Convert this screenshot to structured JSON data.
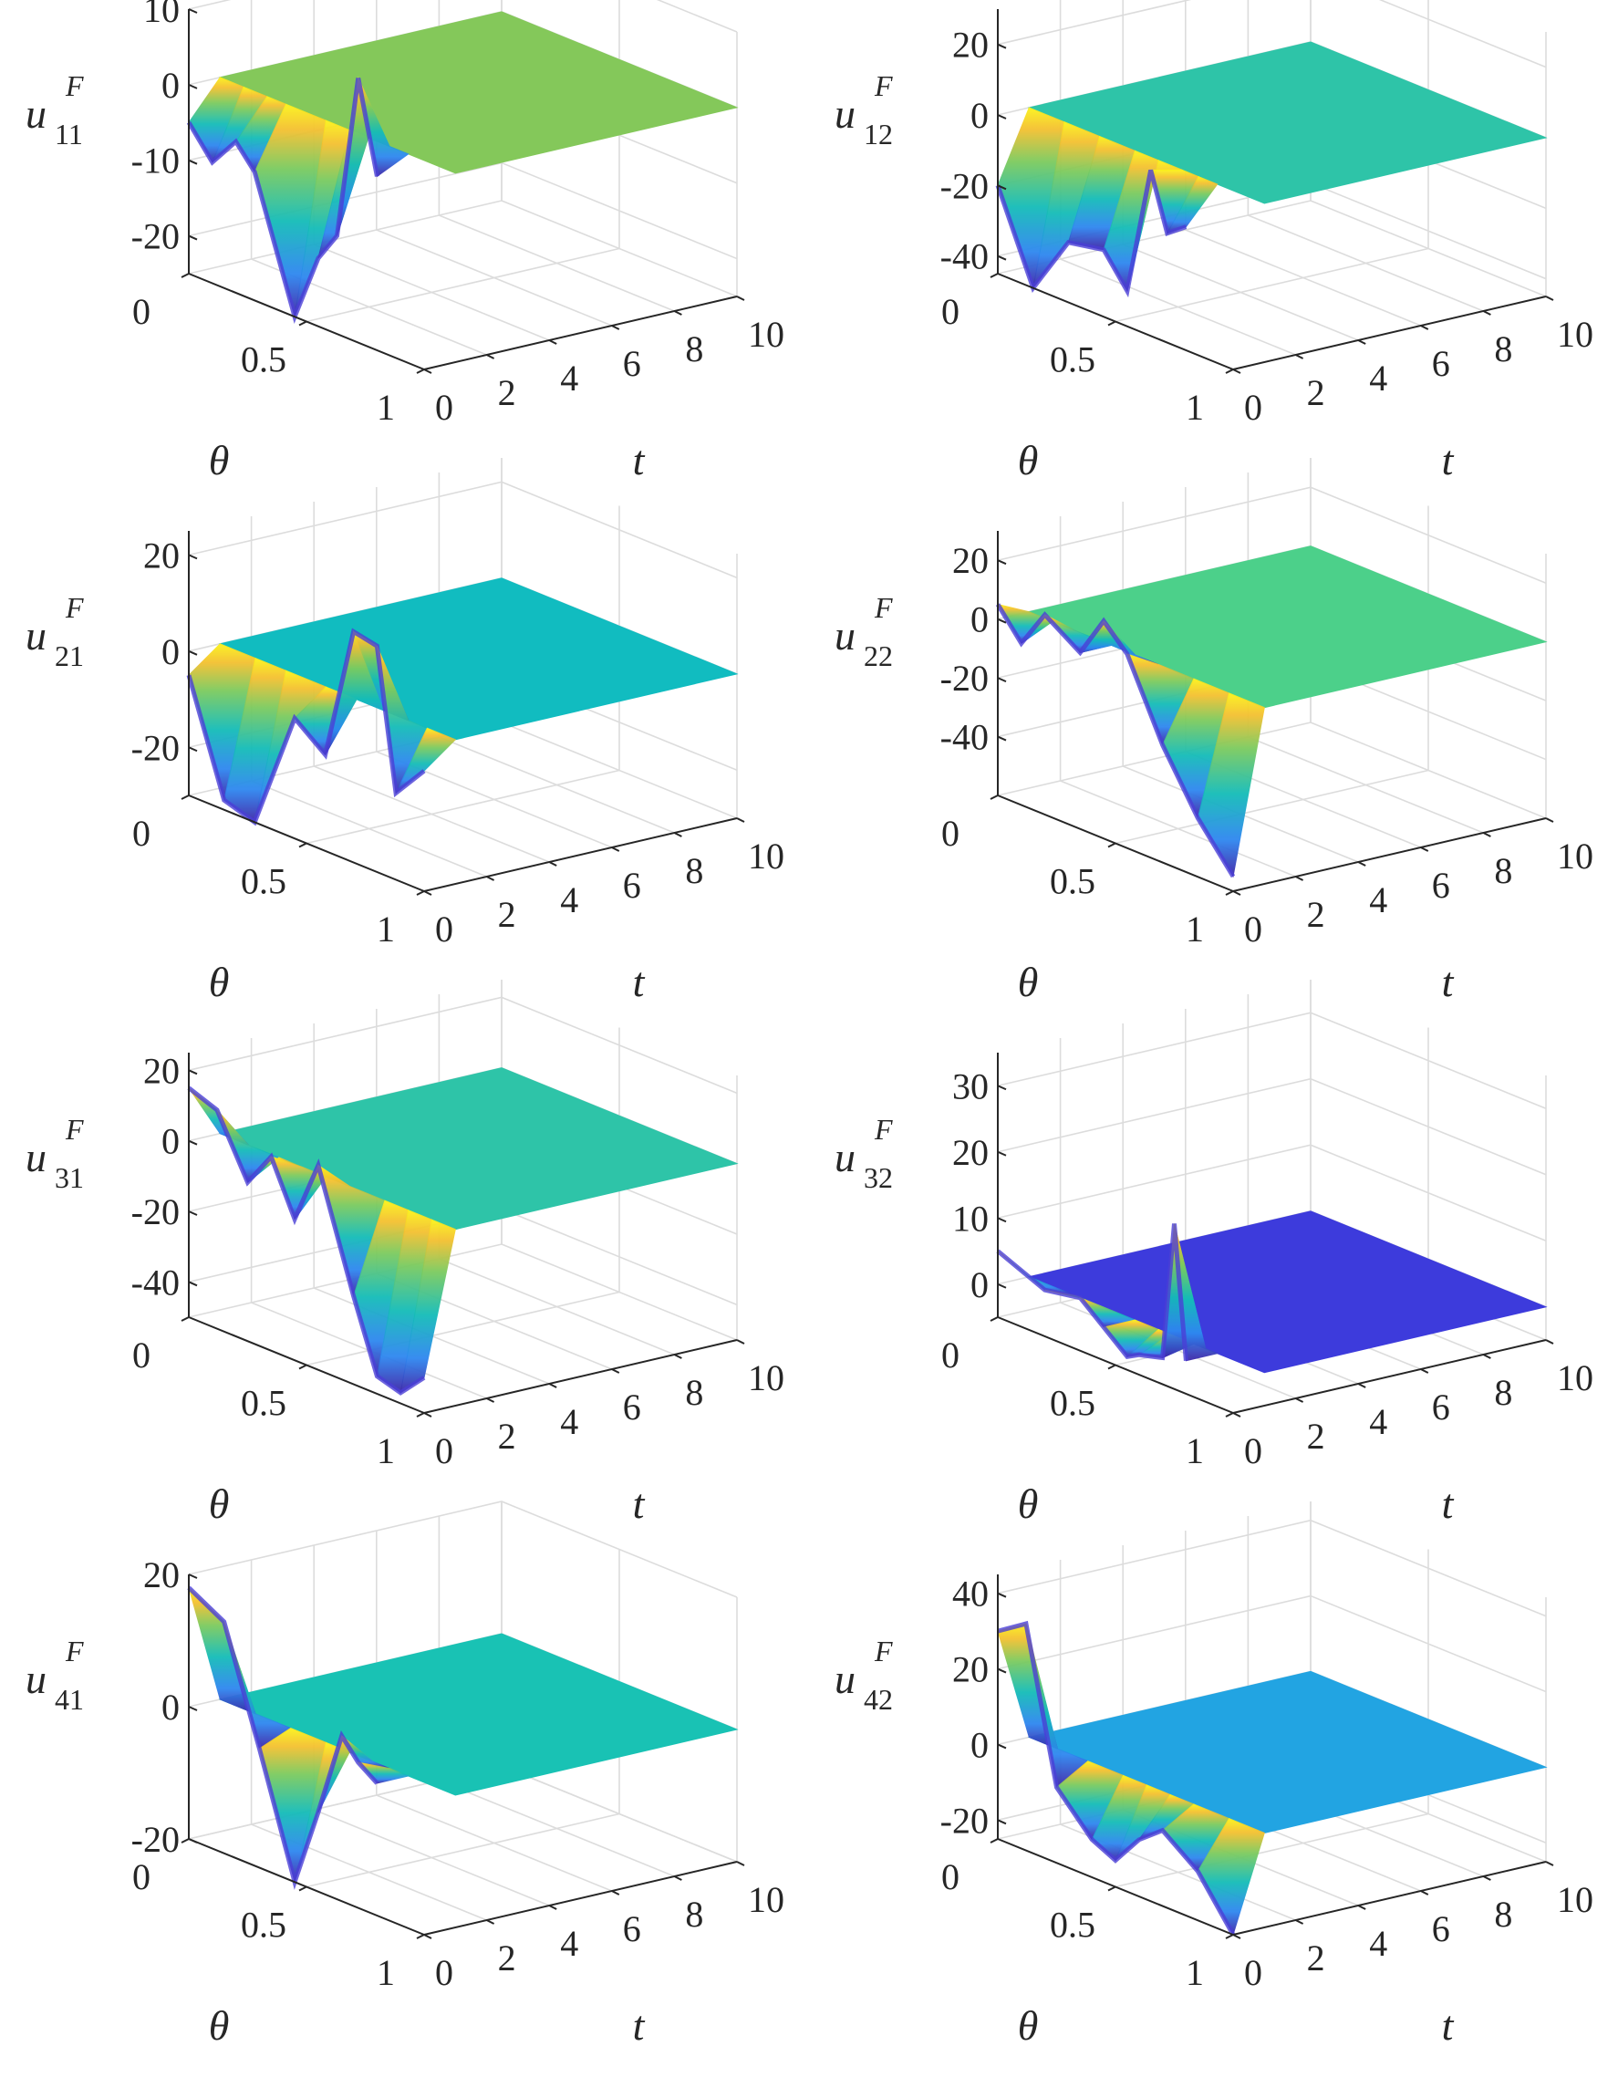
{
  "chart_data": [
    {
      "type": "surface",
      "zlabel": {
        "base": "u",
        "sup": "F",
        "sub": "11"
      },
      "xlabel": "θ",
      "ylabel": "t",
      "xlim": [
        0,
        1
      ],
      "ylim": [
        0,
        10
      ],
      "zlim": [
        -25,
        10
      ],
      "xticks": [
        "0",
        "0.5",
        "1"
      ],
      "yticks": [
        "0",
        "2",
        "4",
        "6",
        "8",
        "10"
      ],
      "zticks": [
        "10",
        "0",
        "-10",
        "-20"
      ],
      "zticks_values": [
        10,
        0,
        -10,
        -20
      ],
      "plateau_value": 0,
      "plateau_color": "#84c85a",
      "profile_theta": [
        0,
        0.1,
        0.2,
        0.28,
        0.45,
        0.55,
        0.63,
        0.72,
        0.8
      ],
      "profile_u": [
        -5,
        -9,
        -5,
        -8,
        -25,
        -16,
        -12,
        10,
        -2
      ],
      "transition_t": 1
    },
    {
      "type": "surface",
      "zlabel": {
        "base": "u",
        "sup": "F",
        "sub": "12"
      },
      "xlabel": "θ",
      "ylabel": "t",
      "xlim": [
        0,
        1
      ],
      "ylim": [
        0,
        10
      ],
      "zlim": [
        -45,
        30
      ],
      "xticks": [
        "0",
        "0.5",
        "1"
      ],
      "yticks": [
        "0",
        "2",
        "4",
        "6",
        "8",
        "10"
      ],
      "zticks": [
        "20",
        "0",
        "-20",
        "-40"
      ],
      "zticks_values": [
        20,
        0,
        -20,
        -40
      ],
      "plateau_value": 0,
      "plateau_color": "#2ec4a8",
      "profile_theta": [
        0,
        0.15,
        0.3,
        0.45,
        0.55,
        0.65,
        0.72,
        0.8
      ],
      "profile_u": [
        -20,
        -45,
        -28,
        -26,
        -35,
        2,
        -14,
        -10
      ],
      "transition_t": 1
    },
    {
      "type": "surface",
      "zlabel": {
        "base": "u",
        "sup": "F",
        "sub": "21"
      },
      "xlabel": "θ",
      "ylabel": "t",
      "xlim": [
        0,
        1
      ],
      "ylim": [
        0,
        10
      ],
      "zlim": [
        -30,
        25
      ],
      "xticks": [
        "0",
        "0.5",
        "1"
      ],
      "yticks": [
        "0",
        "2",
        "4",
        "6",
        "8",
        "10"
      ],
      "zticks": [
        "20",
        "0",
        "-20"
      ],
      "zticks_values": [
        20,
        0,
        -20
      ],
      "plateau_value": 0,
      "plateau_color": "#11bcc0",
      "profile_theta": [
        0,
        0.15,
        0.28,
        0.45,
        0.58,
        0.7,
        0.8,
        0.88,
        1
      ],
      "profile_u": [
        -5,
        -28,
        -30,
        -5,
        -10,
        18,
        17,
        -12,
        -5
      ],
      "transition_t": 1
    },
    {
      "type": "surface",
      "zlabel": {
        "base": "u",
        "sup": "F",
        "sub": "22"
      },
      "xlabel": "θ",
      "ylabel": "t",
      "xlim": [
        0,
        1
      ],
      "ylim": [
        0,
        10
      ],
      "zlim": [
        -60,
        30
      ],
      "xticks": [
        "0",
        "0.5",
        "1"
      ],
      "yticks": [
        "0",
        "2",
        "4",
        "6",
        "8",
        "10"
      ],
      "zticks": [
        "20",
        "0",
        "-20",
        "-40"
      ],
      "zticks_values": [
        20,
        0,
        -20,
        -40
      ],
      "plateau_value": 0,
      "plateau_color": "#4cd08a",
      "profile_theta": [
        0,
        0.1,
        0.2,
        0.35,
        0.45,
        0.55,
        0.7,
        0.85,
        1
      ],
      "profile_u": [
        5,
        -5,
        8,
        0,
        14,
        6,
        -20,
        -40,
        -55
      ],
      "transition_t": 1
    },
    {
      "type": "surface",
      "zlabel": {
        "base": "u",
        "sup": "F",
        "sub": "31"
      },
      "xlabel": "θ",
      "ylabel": "t",
      "xlim": [
        0,
        1
      ],
      "ylim": [
        0,
        10
      ],
      "zlim": [
        -50,
        25
      ],
      "xticks": [
        "0",
        "0.5",
        "1"
      ],
      "yticks": [
        "0",
        "2",
        "4",
        "6",
        "8",
        "10"
      ],
      "zticks": [
        "20",
        "0",
        "-20",
        "-40"
      ],
      "zticks_values": [
        20,
        0,
        -20,
        -40
      ],
      "plateau_value": 0,
      "plateau_color": "#2ec4a8",
      "profile_theta": [
        0,
        0.12,
        0.25,
        0.35,
        0.45,
        0.55,
        0.7,
        0.8,
        0.9,
        1
      ],
      "profile_u": [
        15,
        12,
        -5,
        5,
        -10,
        8,
        -25,
        -45,
        -47,
        -40
      ],
      "transition_t": 1
    },
    {
      "type": "surface",
      "zlabel": {
        "base": "u",
        "sup": "F",
        "sub": "32"
      },
      "xlabel": "θ",
      "ylabel": "t",
      "xlim": [
        0,
        1
      ],
      "ylim": [
        0,
        10
      ],
      "zlim": [
        -5,
        35
      ],
      "xticks": [
        "0",
        "0.5",
        "1"
      ],
      "yticks": [
        "0",
        "2",
        "4",
        "6",
        "8",
        "10"
      ],
      "zticks": [
        "30",
        "20",
        "10",
        "0"
      ],
      "zticks_values": [
        30,
        20,
        10,
        0
      ],
      "plateau_value": 0,
      "plateau_color": "#3d3bdc",
      "profile_theta": [
        0,
        0.2,
        0.35,
        0.45,
        0.55,
        0.6,
        0.7,
        0.75,
        0.8
      ],
      "profile_u": [
        5,
        2,
        3,
        0,
        -3,
        -2,
        -1,
        20,
        0
      ],
      "transition_t": 1
    },
    {
      "type": "surface",
      "zlabel": {
        "base": "u",
        "sup": "F",
        "sub": "41"
      },
      "xlabel": "θ",
      "ylabel": "t",
      "xlim": [
        0,
        1
      ],
      "ylim": [
        0,
        10
      ],
      "zlim": [
        -20,
        20
      ],
      "xticks": [
        "0",
        "0.5",
        "1"
      ],
      "yticks": [
        "0",
        "2",
        "4",
        "6",
        "8",
        "10"
      ],
      "zticks": [
        "20",
        "0",
        "-20"
      ],
      "zticks_values": [
        20,
        0,
        -20
      ],
      "plateau_value": 0,
      "plateau_color": "#19c2b4",
      "profile_theta": [
        0,
        0.15,
        0.3,
        0.45,
        0.55,
        0.65,
        0.72,
        0.8
      ],
      "profile_u": [
        18,
        15,
        -2,
        -20,
        -8,
        5,
        2,
        0
      ],
      "transition_t": 1
    },
    {
      "type": "surface",
      "zlabel": {
        "base": "u",
        "sup": "F",
        "sub": "42"
      },
      "xlabel": "θ",
      "ylabel": "t",
      "xlim": [
        0,
        1
      ],
      "ylim": [
        0,
        10
      ],
      "zlim": [
        -25,
        45
      ],
      "xticks": [
        "0",
        "0.5",
        "1"
      ],
      "yticks": [
        "0",
        "2",
        "4",
        "6",
        "8",
        "10"
      ],
      "zticks": [
        "40",
        "20",
        "0",
        "-20"
      ],
      "zticks_values": [
        40,
        20,
        0,
        -20
      ],
      "plateau_value": 0,
      "plateau_color": "#22a4e2",
      "profile_theta": [
        0,
        0.12,
        0.25,
        0.4,
        0.5,
        0.6,
        0.7,
        0.85,
        1
      ],
      "profile_u": [
        30,
        35,
        -5,
        -15,
        -18,
        -10,
        -5,
        -12,
        -25
      ],
      "transition_t": 1
    }
  ]
}
